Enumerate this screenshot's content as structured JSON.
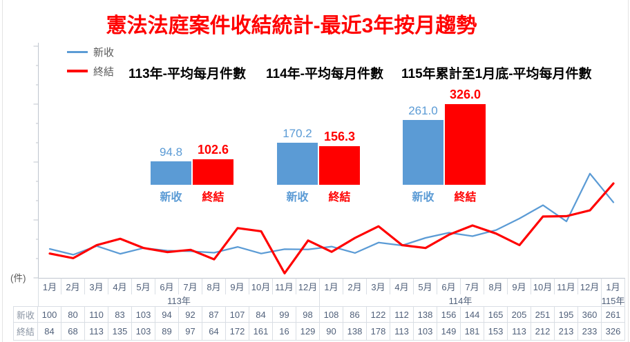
{
  "title": "憲法法庭案件收結統計-最近3年按月趨勢",
  "unit_label": "(件)",
  "colors": {
    "blue": "#5B9BD5",
    "red": "#FF0000",
    "title_red": "#FF0000",
    "legend_text": "#595959",
    "table_text": "#50607A",
    "row_header_text": "#8A94A3",
    "grid_line": "#D9DEE4",
    "axis_line": "#BFC5CE",
    "inset_header_text": "#000000"
  },
  "legend": [
    {
      "label": "新收",
      "color": "#5B9BD5"
    },
    {
      "label": "終結",
      "color": "#FF0000"
    }
  ],
  "insets": [
    {
      "header": "113年-平均每月件數",
      "bars": [
        {
          "label": "新收",
          "value": 94.8,
          "display": "94.8",
          "color": "#5B9BD5"
        },
        {
          "label": "終結",
          "value": 102.6,
          "display": "102.6",
          "color": "#FF0000"
        }
      ]
    },
    {
      "header": "114年-平均每月件數",
      "bars": [
        {
          "label": "新收",
          "value": 170.2,
          "display": "170.2",
          "color": "#5B9BD5"
        },
        {
          "label": "終結",
          "value": 156.3,
          "display": "156.3",
          "color": "#FF0000"
        }
      ]
    },
    {
      "header": "115年累計至1月底-平均每月件數",
      "bars": [
        {
          "label": "新收",
          "value": 261.0,
          "display": "261.0",
          "color": "#5B9BD5"
        },
        {
          "label": "終結",
          "value": 326.0,
          "display": "326.0",
          "color": "#FF0000"
        }
      ]
    }
  ],
  "chart_data": [
    {
      "type": "line",
      "title": "憲法法庭案件收結統計-最近3年按月趨勢",
      "ylabel": "(件)",
      "ylim": [
        0,
        800
      ],
      "grid": false,
      "legend_position": "top-left",
      "x_months": [
        "1月",
        "2月",
        "3月",
        "4月",
        "5月",
        "6月",
        "7月",
        "8月",
        "9月",
        "10月",
        "11月",
        "12月",
        "1月",
        "2月",
        "3月",
        "4月",
        "5月",
        "6月",
        "7月",
        "8月",
        "9月",
        "10月",
        "11月",
        "12月",
        "1月"
      ],
      "x_year_groups": [
        {
          "label": "113年",
          "span": 12
        },
        {
          "label": "114年",
          "span": 12
        },
        {
          "label": "115年",
          "span": 1
        }
      ],
      "series": [
        {
          "name": "新收",
          "color": "#5B9BD5",
          "values": [
            100,
            80,
            110,
            83,
            103,
            94,
            92,
            87,
            107,
            84,
            99,
            98,
            108,
            86,
            122,
            112,
            138,
            156,
            144,
            165,
            205,
            251,
            195,
            360,
            261
          ]
        },
        {
          "name": "終結",
          "color": "#FF0000",
          "values": [
            84,
            68,
            113,
            135,
            103,
            89,
            97,
            64,
            172,
            161,
            16,
            129,
            90,
            138,
            178,
            113,
            103,
            149,
            181,
            153,
            113,
            212,
            213,
            233,
            326
          ]
        }
      ]
    },
    {
      "type": "bar",
      "title": "平均每月件數",
      "colors": [
        "#5B9BD5",
        "#FF0000"
      ],
      "groups": [
        {
          "header": "113年-平均每月件數",
          "categories": [
            "新收",
            "終結"
          ],
          "values": [
            94.8,
            102.6
          ]
        },
        {
          "header": "114年-平均每月件數",
          "categories": [
            "新收",
            "終結"
          ],
          "values": [
            170.2,
            156.3
          ]
        },
        {
          "header": "115年累計至1月底-平均每月件數",
          "categories": [
            "新收",
            "終結"
          ],
          "values": [
            261.0,
            326.0
          ]
        }
      ]
    }
  ],
  "table": {
    "row_headers": [
      "新收",
      "終結"
    ],
    "months": [
      "1月",
      "2月",
      "3月",
      "4月",
      "5月",
      "6月",
      "7月",
      "8月",
      "9月",
      "10月",
      "11月",
      "12月",
      "1月",
      "2月",
      "3月",
      "4月",
      "5月",
      "6月",
      "7月",
      "8月",
      "9月",
      "10月",
      "11月",
      "12月",
      "1月"
    ],
    "year_groups": [
      {
        "label": "113年",
        "span": 12
      },
      {
        "label": "114年",
        "span": 12
      },
      {
        "label": "115年",
        "span": 1
      }
    ],
    "rows": [
      [
        100,
        80,
        110,
        83,
        103,
        94,
        92,
        87,
        107,
        84,
        99,
        98,
        108,
        86,
        122,
        112,
        138,
        156,
        144,
        165,
        205,
        251,
        195,
        360,
        261
      ],
      [
        84,
        68,
        113,
        135,
        103,
        89,
        97,
        64,
        172,
        161,
        16,
        129,
        90,
        138,
        178,
        113,
        103,
        149,
        181,
        153,
        113,
        212,
        213,
        233,
        326
      ]
    ]
  }
}
